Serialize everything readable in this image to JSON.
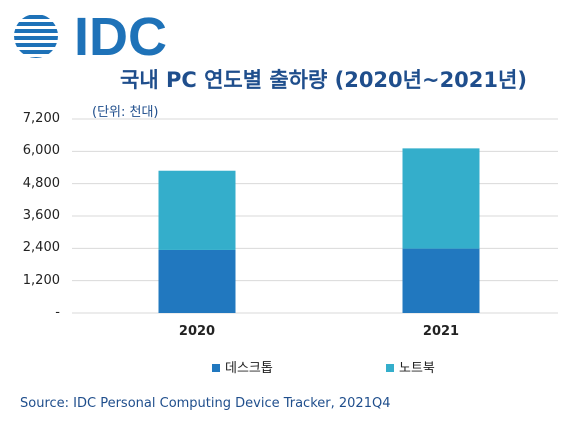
{
  "logo": {
    "text": "IDC"
  },
  "colors": {
    "desktop": "#2178bf",
    "notebook": "#34aecb",
    "title": "#1f4e8c",
    "logo": "#1e72b8",
    "grid": "#d9d9d9"
  },
  "chart_data": {
    "type": "bar",
    "stacked": true,
    "title": "국내 PC 연도별 출하량 (2020년~2021년)",
    "unit_label": "(단위: 천대)",
    "categories": [
      "2020",
      "2021"
    ],
    "series": [
      {
        "name": "데스크톱",
        "values": [
          2340,
          2390
        ]
      },
      {
        "name": "노트북",
        "values": [
          2940,
          3720
        ]
      }
    ],
    "y_ticks": [
      "-",
      "1,200",
      "2,400",
      "3,600",
      "4,800",
      "6,000",
      "7,200"
    ],
    "ylim": [
      0,
      7200
    ],
    "grid": true,
    "legend_position": "bottom"
  },
  "source": "Source: IDC Personal Computing Device Tracker, 2021Q4"
}
